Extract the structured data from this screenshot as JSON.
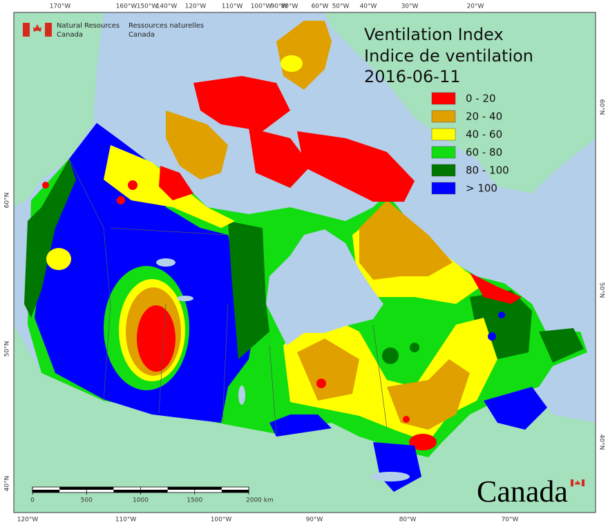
{
  "header": {
    "logo_en": [
      "Natural Resources",
      "Canada"
    ],
    "logo_fr": [
      "Ressources naturelles",
      "Canada"
    ]
  },
  "title": [
    "Ventilation Index",
    "Indice de ventilation",
    "2016-06-11"
  ],
  "legend": [
    {
      "label": "0 - 20",
      "color": "#ff0000"
    },
    {
      "label": "20 - 40",
      "color": "#dfa000"
    },
    {
      "label": "40 - 60",
      "color": "#ffff00"
    },
    {
      "label": "60 - 80",
      "color": "#11dd11"
    },
    {
      "label": "80 - 100",
      "color": "#007700"
    },
    {
      "label": "> 100",
      "color": "#0000ff"
    }
  ],
  "graticule": {
    "top": [
      "170°W",
      "160°W",
      "150°W",
      "140°W",
      "120°W",
      "110°W",
      "100°W",
      "90°W",
      "80°W",
      "60°W",
      "50°W",
      "40°W",
      "30°W",
      "20°W"
    ],
    "bottom": [
      "120°W",
      "110°W",
      "100°W",
      "90°W",
      "80°W",
      "70°W"
    ],
    "left": [
      "60°N",
      "50°N",
      "40°N"
    ],
    "right": [
      "60°N",
      "50°N",
      "40°N"
    ]
  },
  "scale_bar": {
    "ticks": [
      0,
      500,
      1000,
      1500,
      {
        "value": 2000,
        "label": "2000 km"
      }
    ]
  },
  "wordmark": "Canada"
}
